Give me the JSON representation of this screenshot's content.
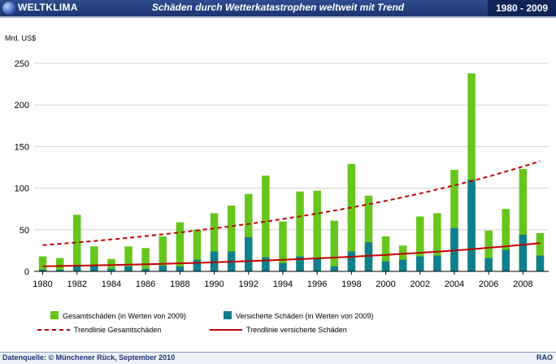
{
  "header": {
    "brand": "WELTKLIMA",
    "title": "Schäden durch Wetterkatastrophen weltweit  mit Trend",
    "period": "1980 - 2009"
  },
  "footer": {
    "source": "Datenquelle: © Münchener Rück,  September 2010",
    "brand": "RAO"
  },
  "colors": {
    "total": "#66c61c",
    "insured": "#0f7f8c",
    "trend_total": "#c00000",
    "trend_insured": "#c00000"
  },
  "chart_data": {
    "type": "bar",
    "ylabel": "Mrd. US$",
    "ylim": [
      0,
      250
    ],
    "yticks": [
      0,
      50,
      100,
      150,
      200,
      250
    ],
    "x": [
      1980,
      1981,
      1982,
      1983,
      1984,
      1985,
      1986,
      1987,
      1988,
      1989,
      1990,
      1991,
      1992,
      1993,
      1994,
      1995,
      1996,
      1997,
      1998,
      1999,
      2000,
      2001,
      2002,
      2003,
      2004,
      2005,
      2006,
      2007,
      2008,
      2009
    ],
    "xtick_labels": [
      "1980",
      "1982",
      "1984",
      "1986",
      "1988",
      "1990",
      "1992",
      "1994",
      "1996",
      "1998",
      "2000",
      "2002",
      "2004",
      "2006",
      "2008"
    ],
    "grid": true,
    "legend_position": "bottom",
    "series": [
      {
        "name": "Gesamtschäden (in Werten von 2009)",
        "values": [
          18,
          16,
          68,
          30,
          15,
          30,
          28,
          42,
          59,
          50,
          70,
          79,
          93,
          115,
          60,
          96,
          97,
          61,
          129,
          91,
          42,
          31,
          66,
          70,
          122,
          238,
          49,
          75,
          123,
          46
        ]
      },
      {
        "name": "Versicherte Schäden (in Werten von 2009)",
        "values": [
          2,
          2,
          7,
          8,
          3,
          6,
          3,
          7,
          6,
          14,
          24,
          24,
          41,
          17,
          10,
          18,
          15,
          6,
          24,
          35,
          12,
          14,
          18,
          19,
          52,
          110,
          16,
          26,
          44,
          19
        ]
      },
      {
        "name": "Trendlinie Gesamtschäden",
        "values": [
          31.5,
          33.1,
          34.8,
          36.5,
          38.4,
          40.3,
          42.4,
          44.5,
          46.8,
          49.2,
          51.7,
          54.3,
          57.0,
          59.9,
          63.0,
          66.2,
          69.5,
          73.1,
          76.8,
          80.7,
          84.8,
          89.1,
          93.6,
          98.4,
          103.4,
          108.6,
          114.1,
          119.9,
          126.0,
          132.4
        ]
      },
      {
        "name": "Trendlinie versicherte Schäden",
        "values": [
          6.0,
          6.4,
          6.8,
          7.2,
          7.6,
          8.1,
          8.6,
          9.1,
          9.7,
          10.3,
          10.9,
          11.6,
          12.3,
          13.1,
          13.9,
          14.7,
          15.6,
          16.6,
          17.6,
          18.7,
          19.8,
          21.1,
          22.4,
          23.7,
          25.2,
          26.7,
          28.4,
          30.1,
          32.0,
          34.0
        ]
      }
    ]
  }
}
